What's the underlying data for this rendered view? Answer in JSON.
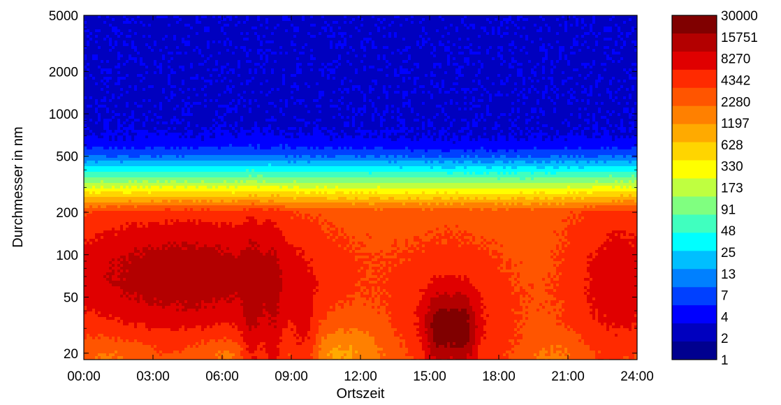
{
  "chart_data": {
    "type": "heatmap",
    "title": "",
    "xlabel": "Ortszeit",
    "ylabel": "Durchmesser in nm",
    "x_ticks": [
      "00:00",
      "03:00",
      "06:00",
      "09:00",
      "12:00",
      "15:00",
      "18:00",
      "21:00",
      "24:00"
    ],
    "xlim_hours": [
      0,
      24
    ],
    "y_scale": "log",
    "ylim": [
      18,
      5000
    ],
    "y_ticks": [
      20,
      50,
      100,
      200,
      500,
      1000,
      2000,
      5000
    ],
    "colorbar_levels": [
      "30000",
      "15751",
      "8270",
      "4342",
      "2280",
      "1197",
      "628",
      "330",
      "173",
      "91",
      "48",
      "25",
      "13",
      "7",
      "4",
      "2",
      "1"
    ],
    "colorbar_colors": [
      "#800000",
      "#b30000",
      "#e00000",
      "#ff2a00",
      "#ff5500",
      "#ff8000",
      "#ffaa00",
      "#ffd500",
      "#ffff00",
      "#bfff40",
      "#80ff80",
      "#40ffbf",
      "#00ffff",
      "#00bfff",
      "#0080ff",
      "#0040ff",
      "#0000ff",
      "#0000bf",
      "#00008f"
    ],
    "grid": false
  }
}
